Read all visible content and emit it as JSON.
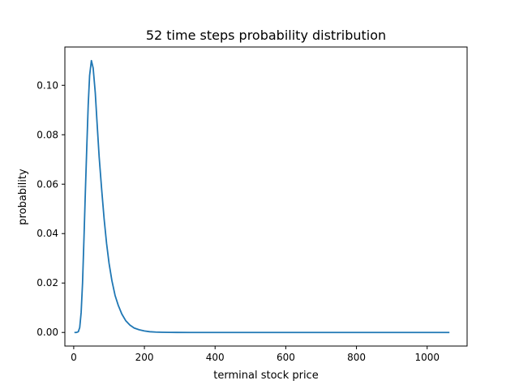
{
  "chart_data": {
    "type": "line",
    "title": "52 time steps probability distribution",
    "xlabel": "terminal stock price",
    "ylabel": "probability",
    "xlim": [
      -25,
      1113
    ],
    "ylim": [
      -0.0055,
      0.1155
    ],
    "x_ticks": [
      0,
      200,
      400,
      600,
      800,
      1000
    ],
    "x_tick_labels": [
      "0",
      "200",
      "400",
      "600",
      "800",
      "1000"
    ],
    "y_ticks": [
      0.0,
      0.02,
      0.04,
      0.06,
      0.08,
      0.1
    ],
    "y_tick_labels": [
      "0.00",
      "0.02",
      "0.04",
      "0.06",
      "0.08",
      "0.10"
    ],
    "grid": false,
    "legend": false,
    "series": [
      {
        "color": "#1f77b4",
        "x": [
          2,
          8,
          13,
          17,
          21,
          25,
          29,
          33,
          37,
          41,
          45,
          50,
          55,
          61,
          66,
          72,
          79,
          86,
          93,
          100,
          108,
          117,
          126,
          136,
          147,
          159,
          171,
          185,
          200,
          215,
          232,
          250,
          270,
          292,
          330,
          400,
          500,
          600,
          700,
          800,
          900,
          1000,
          1063
        ],
        "y": [
          0.0,
          0.0,
          0.0003,
          0.002,
          0.008,
          0.02,
          0.038,
          0.057,
          0.075,
          0.092,
          0.104,
          0.11,
          0.107,
          0.097,
          0.085,
          0.071,
          0.058,
          0.046,
          0.036,
          0.028,
          0.021,
          0.015,
          0.011,
          0.0075,
          0.0048,
          0.003,
          0.0018,
          0.0011,
          0.0006,
          0.0003,
          0.00015,
          7e-05,
          3e-05,
          1e-05,
          0.0,
          0.0,
          0.0,
          0.0,
          0.0,
          0.0,
          0.0,
          0.0,
          0.0
        ]
      }
    ]
  }
}
